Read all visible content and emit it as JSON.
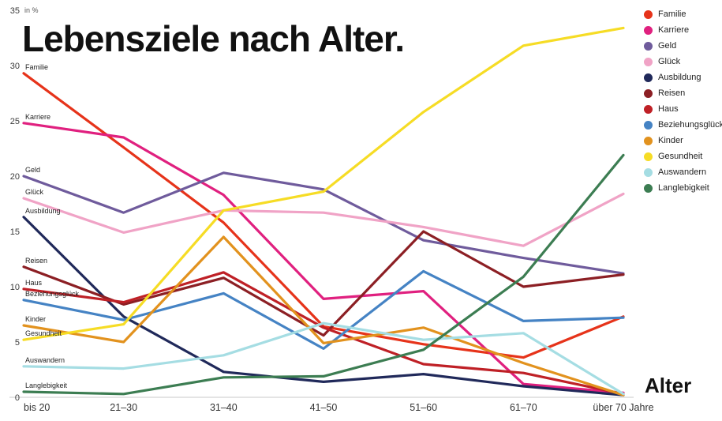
{
  "title": "Lebensziele nach Alter.",
  "x_axis_label": "Alter",
  "y_axis_unit": "in %",
  "chart_data": {
    "type": "line",
    "title": "Lebensziele nach Alter.",
    "xlabel": "Alter",
    "ylabel": "in %",
    "grid": false,
    "legend_position": "top-right",
    "ylim": [
      0,
      35
    ],
    "yticks": [
      0,
      5,
      10,
      15,
      20,
      25,
      30,
      35
    ],
    "categories": [
      "bis 20",
      "21–30",
      "31–40",
      "41–50",
      "51–60",
      "61–70",
      "über 70 Jahre"
    ],
    "series": [
      {
        "name": "Familie",
        "color": "#e6331a",
        "values": [
          29.3,
          22.6,
          15.8,
          6.4,
          4.8,
          3.6,
          7.3
        ]
      },
      {
        "name": "Karriere",
        "color": "#e0207f",
        "values": [
          24.8,
          23.5,
          18.3,
          8.9,
          9.6,
          1.2,
          0.4
        ]
      },
      {
        "name": "Geld",
        "color": "#6f5b9c",
        "values": [
          20.0,
          16.7,
          20.3,
          18.8,
          14.2,
          12.6,
          11.2
        ]
      },
      {
        "name": "Glück",
        "color": "#f0a3c6",
        "values": [
          18.0,
          14.9,
          16.9,
          16.7,
          15.4,
          13.7,
          18.4
        ]
      },
      {
        "name": "Ausbildung",
        "color": "#20295a",
        "values": [
          16.3,
          7.3,
          2.3,
          1.4,
          2.1,
          1.0,
          0.2
        ]
      },
      {
        "name": "Reisen",
        "color": "#8c1f24",
        "values": [
          11.8,
          8.4,
          10.8,
          5.6,
          15.0,
          10.0,
          11.1
        ]
      },
      {
        "name": "Haus",
        "color": "#bf2026",
        "values": [
          9.8,
          8.6,
          11.3,
          6.3,
          3.0,
          2.2,
          0.3
        ]
      },
      {
        "name": "Beziehungsglück",
        "color": "#4583c4",
        "values": [
          8.8,
          7.0,
          9.4,
          4.4,
          11.4,
          6.9,
          7.2
        ]
      },
      {
        "name": "Kinder",
        "color": "#e2921e",
        "values": [
          6.5,
          5.0,
          14.5,
          4.9,
          6.3,
          3.1,
          0.2
        ]
      },
      {
        "name": "Gesundheit",
        "color": "#f6dc25",
        "values": [
          5.2,
          6.6,
          16.9,
          18.6,
          25.8,
          31.8,
          33.4
        ]
      },
      {
        "name": "Auswandern",
        "color": "#a5dde3",
        "values": [
          2.8,
          2.6,
          3.8,
          6.7,
          5.2,
          5.8,
          0.3
        ]
      },
      {
        "name": "Langlebigkeit",
        "color": "#3c7d52",
        "values": [
          0.5,
          0.3,
          1.8,
          1.9,
          4.3,
          10.9,
          21.9
        ]
      }
    ]
  }
}
